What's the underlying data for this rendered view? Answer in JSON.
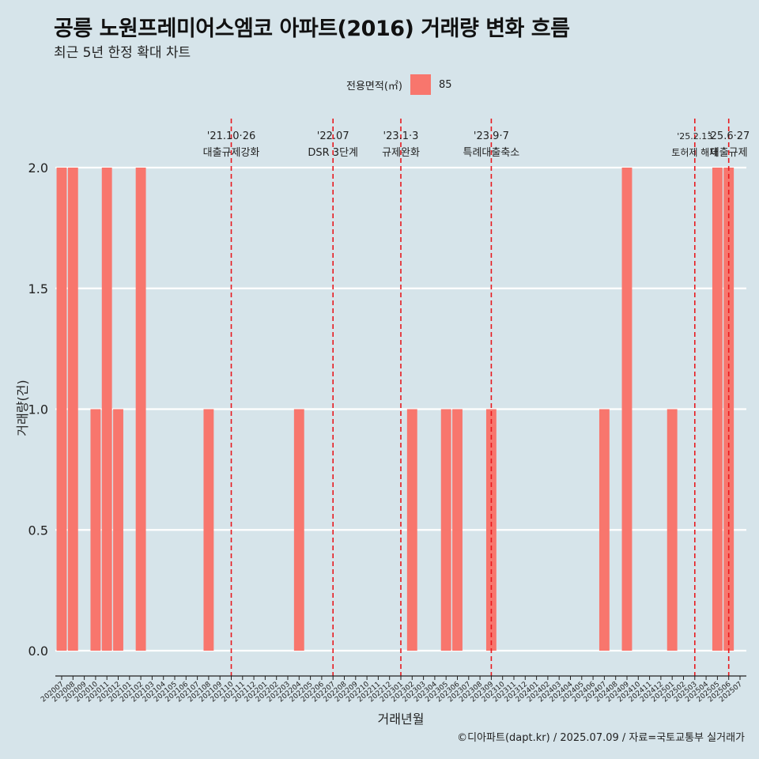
{
  "title": "공릉 노원프레미어스엠코 아파트(2016) 거래량 변화 흐름",
  "subtitle": "최근 5년 한정 확대 차트",
  "caption": "©디아파트(dapt.kr) / 2025.07.09 / 자료=국토교통부 실거래가",
  "colors": {
    "background": "#d6e4ea",
    "bar": "#f8766d",
    "event_line": "#e8191e",
    "grid": "#ffffff"
  },
  "chart_data": {
    "type": "bar",
    "xlabel": "거래년월",
    "ylabel": "거래량(건)",
    "ylim": [
      0,
      2
    ],
    "y_ticks": [
      "0.0",
      "0.5",
      "1.0",
      "1.5",
      "2.0"
    ],
    "legend": {
      "title": "전용면적(㎡)",
      "position": "top"
    },
    "categories": [
      "202007",
      "202008",
      "202009",
      "202010",
      "202011",
      "202012",
      "202101",
      "202102",
      "202103",
      "202104",
      "202105",
      "202106",
      "202107",
      "202108",
      "202109",
      "202110",
      "202111",
      "202112",
      "202201",
      "202202",
      "202203",
      "202204",
      "202205",
      "202206",
      "202207",
      "202208",
      "202209",
      "202210",
      "202211",
      "202212",
      "202301",
      "202302",
      "202303",
      "202304",
      "202305",
      "202306",
      "202307",
      "202308",
      "202309",
      "202310",
      "202311",
      "202312",
      "202401",
      "202402",
      "202403",
      "202404",
      "202405",
      "202406",
      "202407",
      "202408",
      "202409",
      "202410",
      "202411",
      "202412",
      "202501",
      "202502",
      "202503",
      "202504",
      "202505",
      "202506",
      "202507"
    ],
    "series": [
      {
        "name": "85",
        "values": [
          2,
          2,
          0,
          1,
          2,
          1,
          0,
          2,
          0,
          0,
          0,
          0,
          0,
          1,
          0,
          0,
          0,
          0,
          0,
          0,
          0,
          1,
          0,
          0,
          0,
          0,
          0,
          0,
          0,
          0,
          0,
          1,
          0,
          0,
          1,
          1,
          0,
          0,
          1,
          0,
          0,
          0,
          0,
          0,
          0,
          0,
          0,
          0,
          1,
          0,
          2,
          0,
          0,
          0,
          1,
          0,
          0,
          0,
          2,
          2,
          0
        ]
      }
    ],
    "events": [
      {
        "x": "202110",
        "date": "'21.10·26",
        "label": "대출규제강화"
      },
      {
        "x": "202207",
        "date": "'22.07",
        "label": "DSR 3단계"
      },
      {
        "x": "202301",
        "date": "'23.1·3",
        "label": "규제완화"
      },
      {
        "x": "202309",
        "date": "'23.9·7",
        "label": "특례대출축소"
      },
      {
        "x": "202503",
        "date": "'25.2.13",
        "label": "토허제 해제"
      },
      {
        "x": "202506",
        "date": "'25.6·27",
        "label": "대출규제"
      }
    ]
  }
}
